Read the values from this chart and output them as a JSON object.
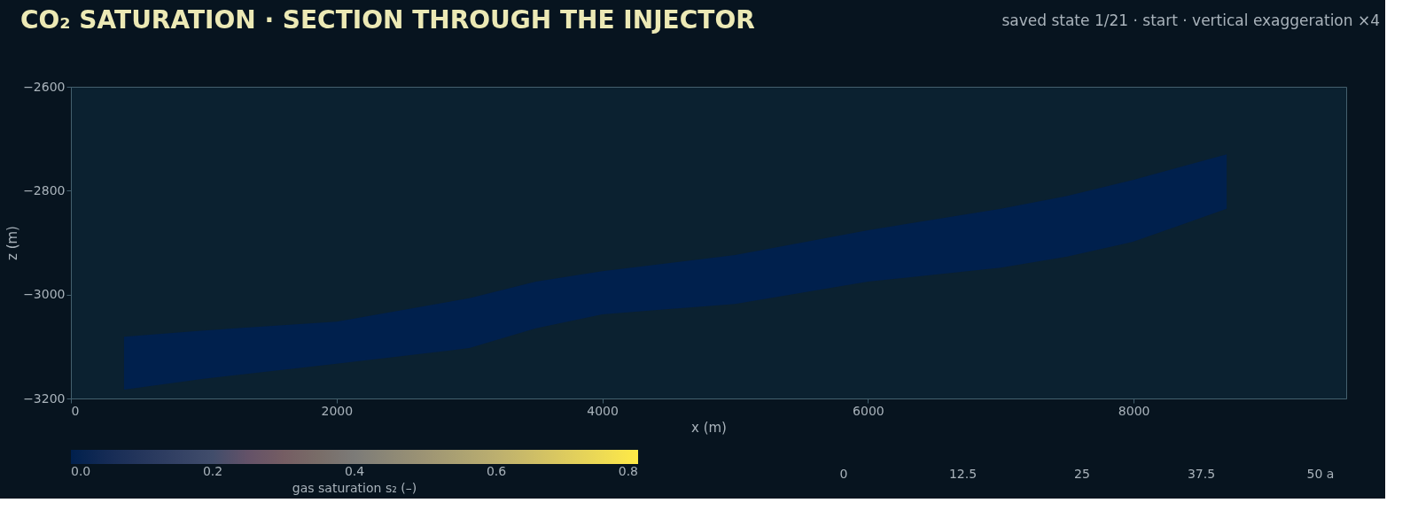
{
  "chart_data": {
    "type": "area",
    "title": "CO₂ SATURATION · SECTION THROUGH THE INJECTOR",
    "subtitle": "saved state 1/21 · start   ·   vertical exaggeration ×4",
    "xlabel": "x (m)",
    "ylabel": "z (m)",
    "clabel": "gas saturation  s₂  (–)",
    "series": [
      {
        "color": "#00204d",
        "x": [
          400,
          1000,
          2000,
          3000,
          3500,
          4000,
          5000,
          6000,
          7000,
          7500,
          8000,
          8700
        ],
        "values": [
          null,
          null,
          null,
          null,
          null,
          null,
          null,
          null,
          null,
          null,
          null,
          null
        ],
        "upper": [
          -3081,
          -3069,
          -3052,
          -3007,
          -2975,
          -2955,
          -2924,
          -2876,
          -2835,
          -2810,
          -2779,
          -2730
        ],
        "lower": [
          -3183,
          -3162,
          -3133,
          -3103,
          -3065,
          -3038,
          -3018,
          -2975,
          -2948,
          -2927,
          -2898,
          -2835
        ]
      }
    ],
    "xlim": [
      0,
      9600
    ],
    "xticks": [
      0,
      2000,
      4000,
      6000,
      8000
    ],
    "ylim": [
      -3200,
      -2600
    ],
    "yticks": [
      -3200,
      -3000,
      -2800,
      -2600
    ],
    "clim": [
      0,
      0.8
    ],
    "cticks": [
      {
        "value": 0,
        "label": "0.0"
      },
      0.2,
      0.4,
      0.6,
      0.8
    ],
    "grid": false,
    "annotations": [
      "0",
      "12.5",
      "25",
      "37.5",
      "50 a"
    ]
  }
}
